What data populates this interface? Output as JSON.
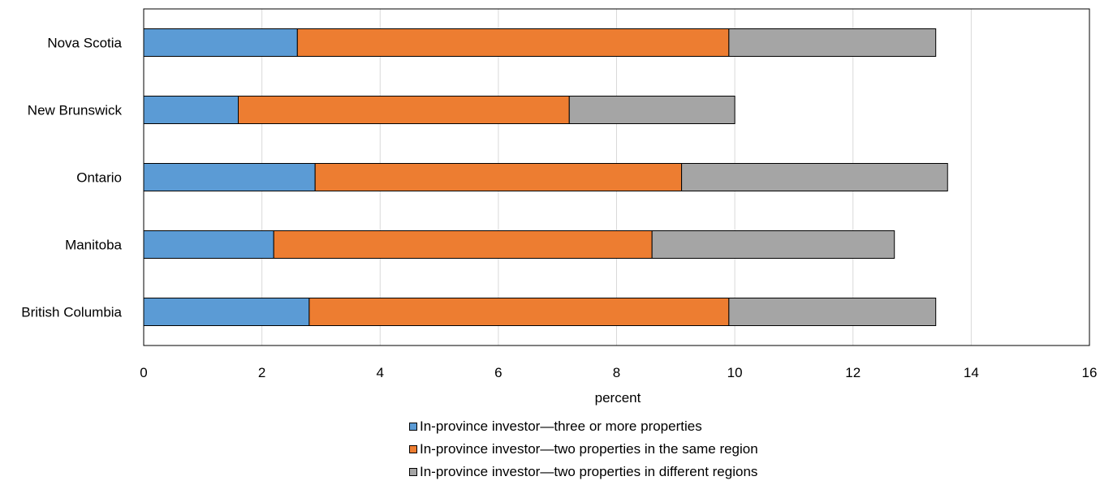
{
  "chart_data": {
    "type": "bar",
    "orientation": "horizontal",
    "stacked": true,
    "categories": [
      "Nova Scotia",
      "New Brunswick",
      "Ontario",
      "Manitoba",
      "British Columbia"
    ],
    "series": [
      {
        "name": "In-province investor—three or more properties",
        "color": "#5B9BD5",
        "values": [
          2.6,
          1.6,
          2.9,
          2.2,
          2.8
        ]
      },
      {
        "name": "In-province investor—two properties in the same region",
        "color": "#ED7D31",
        "values": [
          7.3,
          5.6,
          6.2,
          6.4,
          7.1
        ]
      },
      {
        "name": "In-province investor—two properties in different regions",
        "color": "#A5A5A5",
        "values": [
          3.5,
          2.8,
          4.5,
          4.1,
          3.5
        ]
      }
    ],
    "xlabel": "percent",
    "xlim": [
      0,
      16
    ],
    "xticks": [
      0,
      2,
      4,
      6,
      8,
      10,
      12,
      14,
      16
    ],
    "grid": true,
    "legend_position": "bottom"
  }
}
